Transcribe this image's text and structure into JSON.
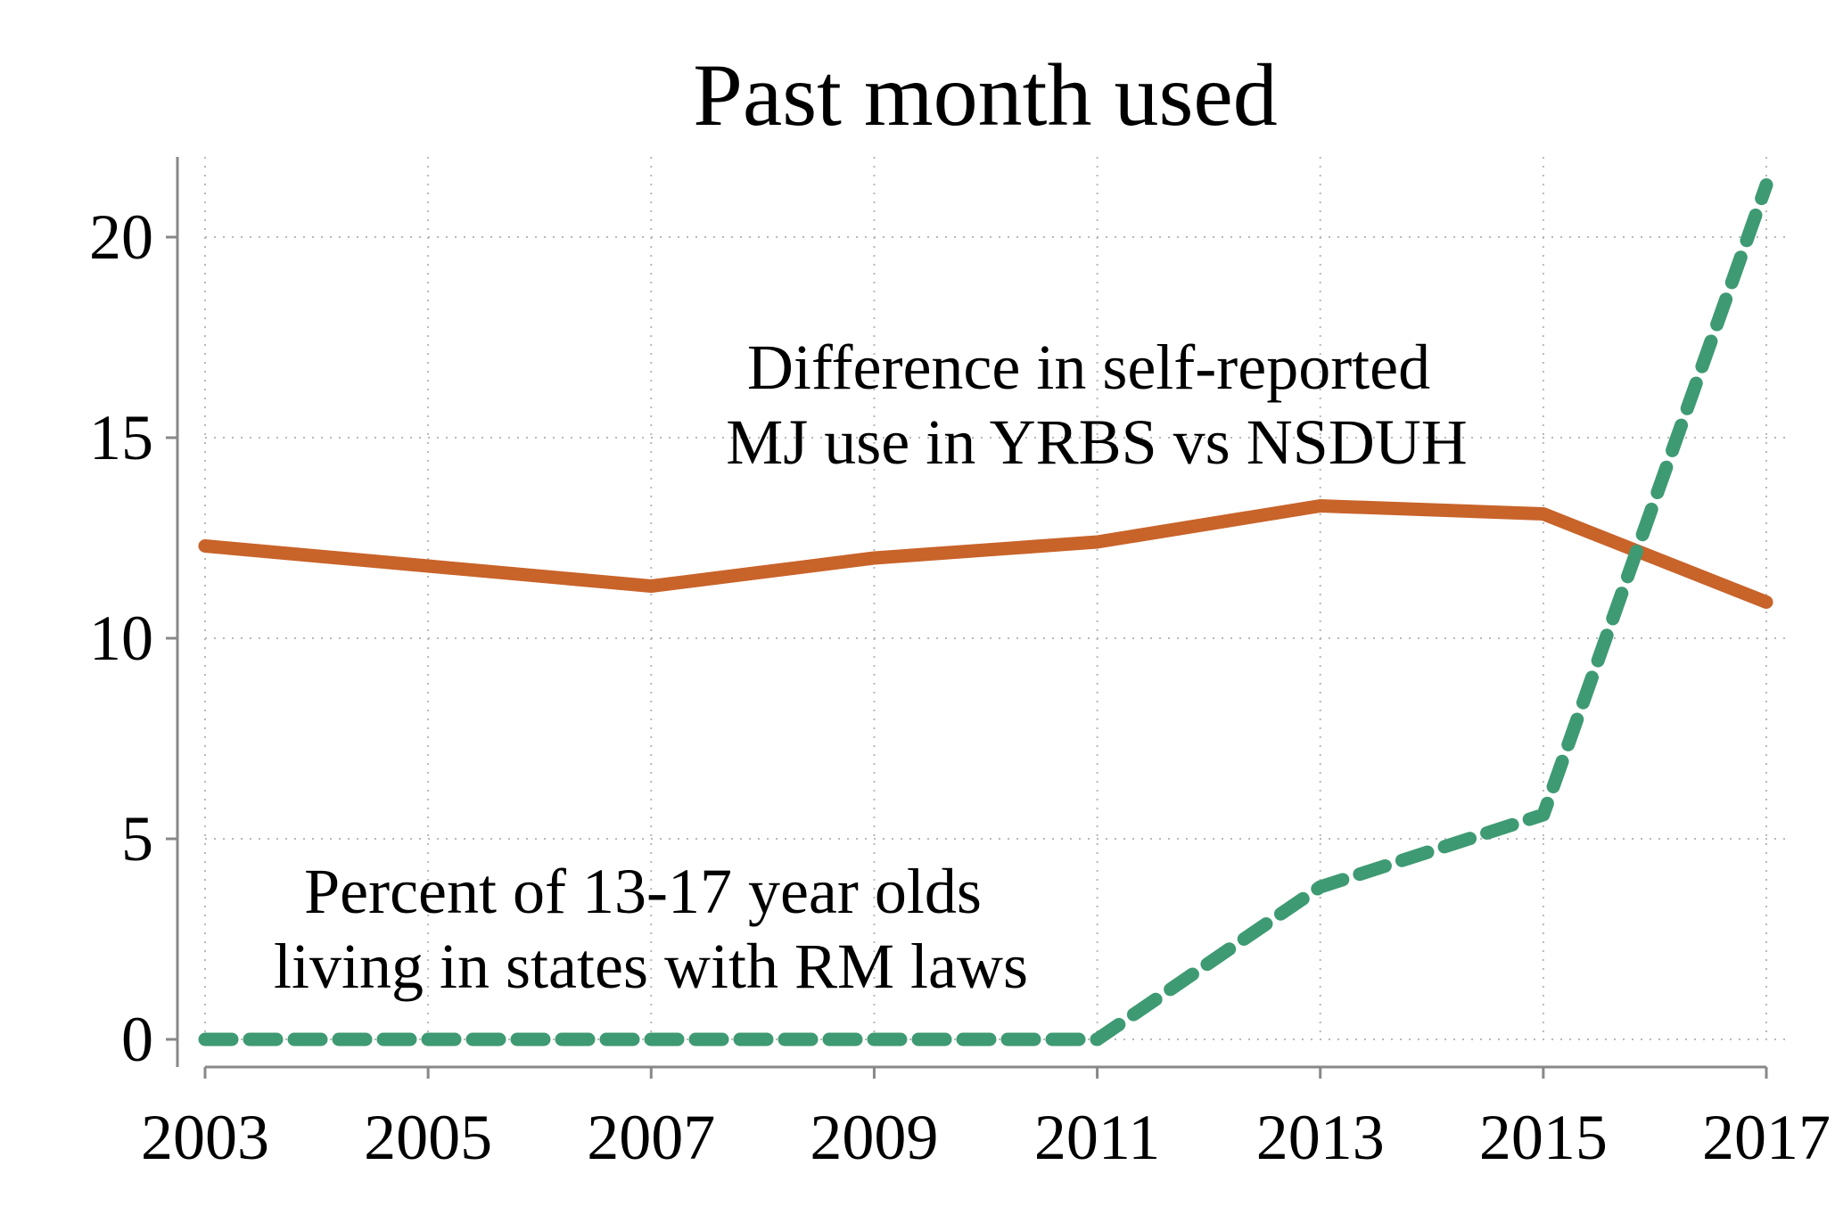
{
  "chart_data": {
    "type": "line",
    "title": "Past month used",
    "xlabel": "",
    "ylabel": "",
    "x": [
      2003,
      2005,
      2007,
      2009,
      2011,
      2013,
      2015,
      2017
    ],
    "xlim": [
      2003,
      2017
    ],
    "ylim": [
      0,
      22
    ],
    "xticks": [
      "2003",
      "2005",
      "2007",
      "2009",
      "2011",
      "2013",
      "2015",
      "2017"
    ],
    "yticks": [
      "0",
      "5",
      "10",
      "15",
      "20"
    ],
    "grid": true,
    "legend": "none",
    "series": [
      {
        "color": "#c8632a",
        "style": "solid",
        "values": [
          12.3,
          11.8,
          11.3,
          12.0,
          12.4,
          13.3,
          13.1,
          10.9
        ]
      },
      {
        "color": "#3e9a72",
        "style": "dashed",
        "values": [
          0,
          0,
          0,
          0,
          0,
          3.8,
          5.6,
          21.3
        ]
      }
    ],
    "annotations": [
      {
        "lines": [
          "Difference in self-reported",
          "MJ use in YRBS vs NSDUH"
        ]
      },
      {
        "lines": [
          "Percent of 13-17 year olds",
          "living in states with RM laws"
        ]
      }
    ]
  }
}
